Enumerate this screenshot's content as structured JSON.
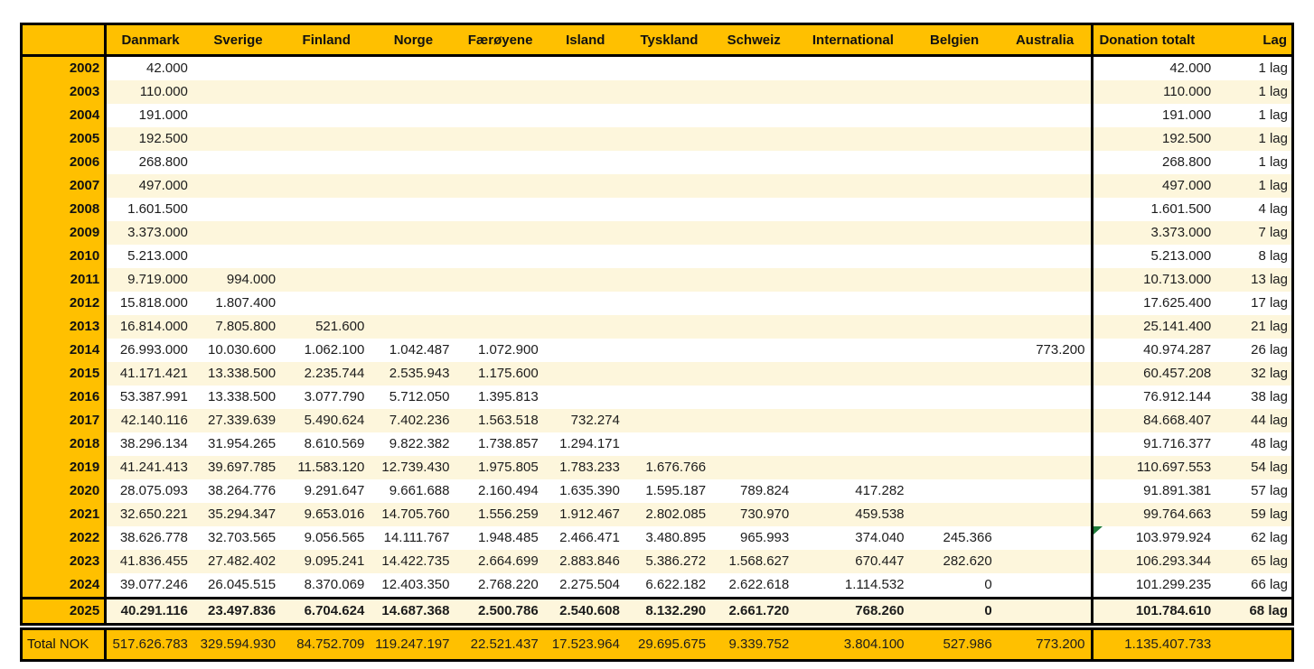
{
  "colors": {
    "header_bg": "#FFC000",
    "stripe_bg": "#FDF6DC",
    "row_bg": "#FFFFFF",
    "border": "#000000",
    "indicator_green": "#1E7B3A",
    "text": "#1C1C1C"
  },
  "table": {
    "corner_label": "",
    "columns": [
      "Danmark",
      "Sverige",
      "Finland",
      "Norge",
      "Færøyene",
      "Island",
      "Tyskland",
      "Schweiz",
      "International",
      "Belgien",
      "Australia"
    ],
    "donation_header": "Donation totalt",
    "lag_header": "Lag",
    "rows": [
      {
        "year": "2002",
        "values": [
          "42.000",
          "",
          "",
          "",
          "",
          "",
          "",
          "",
          "",
          "",
          ""
        ],
        "donation_total": "42.000",
        "lag": "1 lag"
      },
      {
        "year": "2003",
        "values": [
          "110.000",
          "",
          "",
          "",
          "",
          "",
          "",
          "",
          "",
          "",
          ""
        ],
        "donation_total": "110.000",
        "lag": "1 lag"
      },
      {
        "year": "2004",
        "values": [
          "191.000",
          "",
          "",
          "",
          "",
          "",
          "",
          "",
          "",
          "",
          ""
        ],
        "donation_total": "191.000",
        "lag": "1 lag"
      },
      {
        "year": "2005",
        "values": [
          "192.500",
          "",
          "",
          "",
          "",
          "",
          "",
          "",
          "",
          "",
          ""
        ],
        "donation_total": "192.500",
        "lag": "1 lag"
      },
      {
        "year": "2006",
        "values": [
          "268.800",
          "",
          "",
          "",
          "",
          "",
          "",
          "",
          "",
          "",
          ""
        ],
        "donation_total": "268.800",
        "lag": "1 lag"
      },
      {
        "year": "2007",
        "values": [
          "497.000",
          "",
          "",
          "",
          "",
          "",
          "",
          "",
          "",
          "",
          ""
        ],
        "donation_total": "497.000",
        "lag": "1 lag"
      },
      {
        "year": "2008",
        "values": [
          "1.601.500",
          "",
          "",
          "",
          "",
          "",
          "",
          "",
          "",
          "",
          ""
        ],
        "donation_total": "1.601.500",
        "lag": "4 lag"
      },
      {
        "year": "2009",
        "values": [
          "3.373.000",
          "",
          "",
          "",
          "",
          "",
          "",
          "",
          "",
          "",
          ""
        ],
        "donation_total": "3.373.000",
        "lag": "7 lag"
      },
      {
        "year": "2010",
        "values": [
          "5.213.000",
          "",
          "",
          "",
          "",
          "",
          "",
          "",
          "",
          "",
          ""
        ],
        "donation_total": "5.213.000",
        "lag": "8 lag"
      },
      {
        "year": "2011",
        "values": [
          "9.719.000",
          "994.000",
          "",
          "",
          "",
          "",
          "",
          "",
          "",
          "",
          ""
        ],
        "donation_total": "10.713.000",
        "lag": "13 lag"
      },
      {
        "year": "2012",
        "values": [
          "15.818.000",
          "1.807.400",
          "",
          "",
          "",
          "",
          "",
          "",
          "",
          "",
          ""
        ],
        "donation_total": "17.625.400",
        "lag": "17 lag"
      },
      {
        "year": "2013",
        "values": [
          "16.814.000",
          "7.805.800",
          "521.600",
          "",
          "",
          "",
          "",
          "",
          "",
          "",
          ""
        ],
        "donation_total": "25.141.400",
        "lag": "21 lag"
      },
      {
        "year": "2014",
        "values": [
          "26.993.000",
          "10.030.600",
          "1.062.100",
          "1.042.487",
          "1.072.900",
          "",
          "",
          "",
          "",
          "",
          "773.200"
        ],
        "donation_total": "40.974.287",
        "lag": "26 lag"
      },
      {
        "year": "2015",
        "values": [
          "41.171.421",
          "13.338.500",
          "2.235.744",
          "2.535.943",
          "1.175.600",
          "",
          "",
          "",
          "",
          "",
          ""
        ],
        "donation_total": "60.457.208",
        "lag": "32 lag"
      },
      {
        "year": "2016",
        "values": [
          "53.387.991",
          "13.338.500",
          "3.077.790",
          "5.712.050",
          "1.395.813",
          "",
          "",
          "",
          "",
          "",
          ""
        ],
        "donation_total": "76.912.144",
        "lag": "38 lag"
      },
      {
        "year": "2017",
        "values": [
          "42.140.116",
          "27.339.639",
          "5.490.624",
          "7.402.236",
          "1.563.518",
          "732.274",
          "",
          "",
          "",
          "",
          ""
        ],
        "donation_total": "84.668.407",
        "lag": "44 lag"
      },
      {
        "year": "2018",
        "values": [
          "38.296.134",
          "31.954.265",
          "8.610.569",
          "9.822.382",
          "1.738.857",
          "1.294.171",
          "",
          "",
          "",
          "",
          ""
        ],
        "donation_total": "91.716.377",
        "lag": "48 lag"
      },
      {
        "year": "2019",
        "values": [
          "41.241.413",
          "39.697.785",
          "11.583.120",
          "12.739.430",
          "1.975.805",
          "1.783.233",
          "1.676.766",
          "",
          "",
          "",
          ""
        ],
        "donation_total": "110.697.553",
        "lag": "54 lag"
      },
      {
        "year": "2020",
        "values": [
          "28.075.093",
          "38.264.776",
          "9.291.647",
          "9.661.688",
          "2.160.494",
          "1.635.390",
          "1.595.187",
          "789.824",
          "417.282",
          "",
          ""
        ],
        "donation_total": "91.891.381",
        "lag": "57 lag"
      },
      {
        "year": "2021",
        "values": [
          "32.650.221",
          "35.294.347",
          "9.653.016",
          "14.705.760",
          "1.556.259",
          "1.912.467",
          "2.802.085",
          "730.970",
          "459.538",
          "",
          ""
        ],
        "donation_total": "99.764.663",
        "lag": "59 lag"
      },
      {
        "year": "2022",
        "values": [
          "38.626.778",
          "32.703.565",
          "9.056.565",
          "14.111.767",
          "1.948.485",
          "2.466.471",
          "3.480.895",
          "965.993",
          "374.040",
          "245.366",
          ""
        ],
        "donation_total": "103.979.924",
        "lag": "62 lag",
        "marker": true
      },
      {
        "year": "2023",
        "values": [
          "41.836.455",
          "27.482.402",
          "9.095.241",
          "14.422.735",
          "2.664.699",
          "2.883.846",
          "5.386.272",
          "1.568.627",
          "670.447",
          "282.620",
          ""
        ],
        "donation_total": "106.293.344",
        "lag": "65 lag"
      },
      {
        "year": "2024",
        "values": [
          "39.077.246",
          "26.045.515",
          "8.370.069",
          "12.403.350",
          "2.768.220",
          "2.275.504",
          "6.622.182",
          "2.622.618",
          "1.114.532",
          "0",
          ""
        ],
        "donation_total": "101.299.235",
        "lag": "66 lag"
      },
      {
        "year": "2025",
        "values": [
          "40.291.116",
          "23.497.836",
          "6.704.624",
          "14.687.368",
          "2.500.786",
          "2.540.608",
          "8.132.290",
          "2.661.720",
          "768.260",
          "0",
          ""
        ],
        "donation_total": "101.784.610",
        "lag": "68 lag",
        "current": true
      }
    ],
    "total_row": {
      "label": "Total NOK",
      "values": [
        "517.626.783",
        "329.594.930",
        "84.752.709",
        "119.247.197",
        "22.521.437",
        "17.523.964",
        "29.695.675",
        "9.339.752",
        "3.804.100",
        "527.986",
        "773.200"
      ],
      "donation_total": "1.135.407.733",
      "lag": ""
    }
  }
}
